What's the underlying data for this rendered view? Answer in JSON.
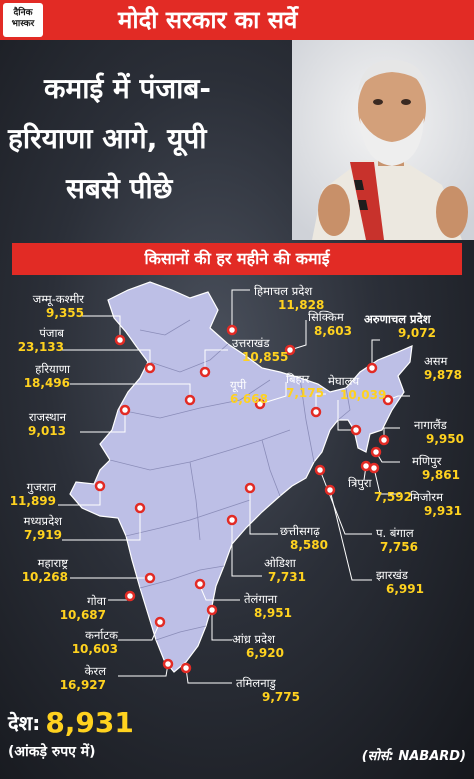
{
  "brand": {
    "logo_line1": "दैनिक",
    "logo_line2": "भास्कर"
  },
  "banner_title": "मोदी सरकार का सर्वे",
  "headline": {
    "line1": "कमाई में पंजाब-",
    "line2": "हरियाणा आगे, यूपी",
    "line3": "सबसे पीछे"
  },
  "subtitle": "किसानों की हर महीने की कमाई",
  "states": [
    {
      "name": "जम्मू-कश्मीर",
      "value": "9,355"
    },
    {
      "name": "पंजाब",
      "value": "23,133"
    },
    {
      "name": "हरियाणा",
      "value": "18,496"
    },
    {
      "name": "राजस्थान",
      "value": "9,013"
    },
    {
      "name": "गुजरात",
      "value": "11,899"
    },
    {
      "name": "मध्यप्रदेश",
      "value": "7,919"
    },
    {
      "name": "महाराष्ट्र",
      "value": "10,268"
    },
    {
      "name": "गोवा",
      "value": "10,687"
    },
    {
      "name": "कर्नाटक",
      "value": "10,603"
    },
    {
      "name": "केरल",
      "value": "16,927"
    },
    {
      "name": "तमिलनाडु",
      "value": "9,775"
    },
    {
      "name": "आंध्र प्रदेश",
      "value": "6,920"
    },
    {
      "name": "तेलंगाना",
      "value": "8,951"
    },
    {
      "name": "ओडिशा",
      "value": "7,731"
    },
    {
      "name": "छत्तीसगढ़",
      "value": "8,580"
    },
    {
      "name": "झारखंड",
      "value": "6,991"
    },
    {
      "name": "प. बंगाल",
      "value": "7,756"
    },
    {
      "name": "बिहार",
      "value": "7,175"
    },
    {
      "name": "यूपी",
      "value": "6,668"
    },
    {
      "name": "उत्तराखंड",
      "value": "10,855"
    },
    {
      "name": "हिमाचल प्रदेश",
      "value": "11,828"
    },
    {
      "name": "सिक्किम",
      "value": "8,603"
    },
    {
      "name": "मेघालय",
      "value": "10,039"
    },
    {
      "name": "अरुणाचल प्रदेश",
      "value": "9,072"
    },
    {
      "name": "असम",
      "value": "9,878"
    },
    {
      "name": "नागालैंड",
      "value": "9,950"
    },
    {
      "name": "मणिपुर",
      "value": "9,861"
    },
    {
      "name": "मिजोरम",
      "value": "9,931"
    },
    {
      "name": "त्रिपुरा",
      "value": "7,592"
    }
  ],
  "country": {
    "label": "देश:",
    "value": "8,931"
  },
  "units": "(आंकड़े रुपए में)",
  "source": "(सोर्स: NABARD)",
  "colors": {
    "banner": "#e22b25",
    "value_text": "#ffd21f",
    "map_fill": "#bdbfe6"
  }
}
